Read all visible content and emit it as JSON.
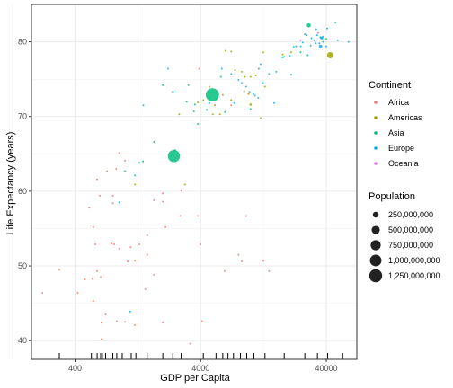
{
  "chart_data": {
    "type": "scatter",
    "title": "",
    "xlabel": "GDP per Capita",
    "ylabel": "Life Expectancy (years)",
    "x_scale": "log10",
    "xlim": [
      180,
      70000
    ],
    "ylim": [
      37.5,
      85
    ],
    "x_ticks": [
      {
        "value": 400,
        "label": "400"
      },
      {
        "value": 4000,
        "label": "4000"
      },
      {
        "value": 40000,
        "label": "40000"
      }
    ],
    "y_ticks": [
      {
        "value": 40,
        "label": "40"
      },
      {
        "value": 50,
        "label": "50"
      },
      {
        "value": 60,
        "label": "60"
      },
      {
        "value": 70,
        "label": "70"
      },
      {
        "value": 80,
        "label": "80"
      }
    ],
    "grid": true,
    "rug": "x-axis bottom",
    "color_legend": {
      "title": "Continent",
      "entries": [
        {
          "name": "Africa",
          "color": "#F8766D"
        },
        {
          "name": "Americas",
          "color": "#A3A500"
        },
        {
          "name": "Asia",
          "color": "#00BF7D"
        },
        {
          "name": "Europe",
          "color": "#00B0F6"
        },
        {
          "name": "Oceania",
          "color": "#E76BF3"
        }
      ]
    },
    "size_legend": {
      "title": "Population",
      "entries": [
        {
          "value": 250000000,
          "label": "250,000,000"
        },
        {
          "value": 500000000,
          "label": "500,000,000"
        },
        {
          "value": 750000000,
          "label": "750,000,000"
        },
        {
          "value": 1000000000,
          "label": "1,000,000,000"
        },
        {
          "value": 1250000000,
          "label": "1,250,000,000"
        }
      ]
    },
    "series": [
      {
        "name": "Africa",
        "color": "#F8766D",
        "points": [
          [
            220,
            46.4,
            8000000
          ],
          [
            300,
            49.5,
            2000000
          ],
          [
            420,
            46.4,
            3000000
          ],
          [
            480,
            48.2,
            2000000
          ],
          [
            550,
            48.3,
            3000000
          ],
          [
            600,
            49.3,
            2000000
          ],
          [
            560,
            45.3,
            2000000
          ],
          [
            650,
            42.4,
            1500000
          ],
          [
            700,
            43.5,
            2000000
          ],
          [
            640,
            48.5,
            1000000
          ],
          [
            860,
            42.6,
            2000000
          ],
          [
            1000,
            42.5,
            1000000
          ],
          [
            1200,
            42.1,
            1000000
          ],
          [
            1450,
            46.9,
            15000000
          ],
          [
            1050,
            50.6,
            1500000
          ],
          [
            1110,
            52.5,
            1000000
          ],
          [
            1300,
            52.9,
            1000000
          ],
          [
            1500,
            54.1,
            1000000
          ],
          [
            1700,
            58.8,
            1000000
          ],
          [
            2100,
            55.2,
            1000000
          ],
          [
            2750,
            56.7,
            1000000
          ],
          [
            800,
            59.4,
            2000000
          ],
          [
            1000,
            64.1,
            1000000
          ],
          [
            900,
            65.1,
            1000000
          ],
          [
            720,
            62.7,
            2000000
          ],
          [
            850,
            63.0,
            1000000
          ],
          [
            630,
            59.4,
            1000000
          ],
          [
            560,
            55.2,
            1000000
          ],
          [
            800,
            58.4,
            1000000
          ],
          [
            600,
            61.6,
            2000000
          ],
          [
            520,
            57.8,
            1500000
          ],
          [
            780,
            53.0,
            2000000
          ],
          [
            580,
            52.9,
            16000000
          ],
          [
            900,
            52.3,
            2000000
          ],
          [
            1200,
            50.7,
            2000000
          ],
          [
            1500,
            51.5,
            1000000
          ],
          [
            2000,
            59.7,
            1000000
          ],
          [
            2800,
            60.1,
            1000000
          ],
          [
            3800,
            56.7,
            1000000
          ],
          [
            3300,
            39.6,
            1000000
          ],
          [
            4000,
            52.9,
            1000000
          ],
          [
            4100,
            42.6,
            1000000
          ],
          [
            6200,
            49.3,
            1000000
          ],
          [
            8000,
            51.5,
            1000000
          ],
          [
            8500,
            50.6,
            1000000
          ],
          [
            9200,
            56.7,
            1000000
          ],
          [
            12600,
            50.7,
            1000000
          ],
          [
            14000,
            49.3,
            1000000
          ],
          [
            7000,
            71.5,
            1000000
          ],
          [
            5500,
            73.0,
            1000000
          ],
          [
            4700,
            72.5,
            1000000
          ],
          [
            3900,
            76.4,
            1000000
          ],
          [
            2000,
            58.6,
            1000000
          ],
          [
            1700,
            48.8,
            1000000
          ],
          [
            650,
            40.2,
            1000000
          ],
          [
            2000,
            42.4,
            1000000
          ],
          [
            820,
            52.9,
            2000000
          ]
        ]
      },
      {
        "name": "Americas",
        "color": "#A3A500",
        "points": [
          [
            5000,
            70.3,
            2000000
          ],
          [
            5200,
            71.5,
            3000000
          ],
          [
            6000,
            72.9,
            2000000
          ],
          [
            7000,
            72.2,
            30000000
          ],
          [
            7500,
            76.2,
            3000000
          ],
          [
            8500,
            76.0,
            10000000
          ],
          [
            9000,
            75.3,
            2000000
          ],
          [
            9600,
            73.0,
            2000000
          ],
          [
            10000,
            71.6,
            40000000
          ],
          [
            11000,
            75.5,
            2000000
          ],
          [
            12600,
            78.6,
            2000000
          ],
          [
            13000,
            74.0,
            2000000
          ],
          [
            18000,
            78.3,
            2000000
          ],
          [
            21000,
            78.6,
            1000000
          ],
          [
            36000,
            80.6,
            33000000
          ],
          [
            43000,
            78.2,
            301000000
          ],
          [
            7000,
            78.7,
            2000000
          ],
          [
            3000,
            60.9,
            8000000
          ],
          [
            1200,
            60.9,
            1500000
          ],
          [
            3800,
            71.9,
            1000000
          ],
          [
            4200,
            72.2,
            1000000
          ],
          [
            5700,
            70.3,
            1000000
          ],
          [
            6300,
            78.8,
            1000000
          ],
          [
            8900,
            73.4,
            1000000
          ],
          [
            10000,
            75.3,
            1000000
          ],
          [
            12000,
            69.8,
            1000000
          ],
          [
            2700,
            70.3,
            1000000
          ],
          [
            4700,
            74.0,
            1000000
          ]
        ]
      },
      {
        "name": "Asia",
        "color": "#00BF7D",
        "points": [
          [
            1000,
            62.7,
            2000000
          ],
          [
            1300,
            63.8,
            4000000
          ],
          [
            1390,
            64.0,
            4000000
          ],
          [
            1700,
            66.6,
            1000000
          ],
          [
            2450,
            64.7,
            1100000000
          ],
          [
            3540,
            70.7,
            2000000
          ],
          [
            3200,
            74.2,
            2000000
          ],
          [
            3600,
            71.6,
            1000000
          ],
          [
            4960,
            72.9,
            1320000000
          ],
          [
            4470,
            70.9,
            1000000
          ],
          [
            6250,
            70.6,
            1000000
          ],
          [
            10000,
            71.0,
            1000000
          ],
          [
            11600,
            76.4,
            1000000
          ],
          [
            25000,
            78.6,
            2000000
          ],
          [
            29000,
            82.2,
            127000000
          ],
          [
            23000,
            79.4,
            2000000
          ],
          [
            40000,
            80.4,
            1000000
          ],
          [
            47300,
            82.6,
            6000000
          ],
          [
            21000,
            75.6,
            1000000
          ],
          [
            2500,
            65.5,
            1000000
          ],
          [
            3100,
            72.0,
            30000000
          ],
          [
            3800,
            69.0,
            1000000
          ],
          [
            2000,
            74.2,
            1000000
          ]
        ]
      },
      {
        "name": "Europe",
        "color": "#00B0F6",
        "points": [
          [
            5900,
            76.4,
            1000000
          ],
          [
            7000,
            75.7,
            1000000
          ],
          [
            8000,
            74.9,
            1000000
          ],
          [
            9800,
            73.3,
            1000000
          ],
          [
            10500,
            73.0,
            1000000
          ],
          [
            10800,
            72.8,
            1000000
          ],
          [
            12500,
            74.5,
            1000000
          ],
          [
            14000,
            75.7,
            1000000
          ],
          [
            15400,
            71.8,
            1000000
          ],
          [
            18000,
            77.9,
            1000000
          ],
          [
            20500,
            78.1,
            1000000
          ],
          [
            22000,
            79.3,
            1000000
          ],
          [
            25000,
            79.4,
            1000000
          ],
          [
            28000,
            80.9,
            1000000
          ],
          [
            30000,
            79.5,
            1000000
          ],
          [
            32000,
            80.2,
            1000000
          ],
          [
            33000,
            79.8,
            1000000
          ],
          [
            33200,
            81.7,
            1000000
          ],
          [
            35300,
            79.8,
            1000000
          ],
          [
            36000,
            79.4,
            80000000
          ],
          [
            36800,
            80.5,
            60000000
          ],
          [
            37500,
            80.7,
            1000000
          ],
          [
            40700,
            81.8,
            1000000
          ],
          [
            49300,
            80.2,
            1000000
          ],
          [
            60000,
            80.0,
            1000000
          ],
          [
            5800,
            75.3,
            1000000
          ],
          [
            7400,
            71.8,
            1000000
          ],
          [
            8500,
            74.5,
            1000000
          ],
          [
            9200,
            74.0,
            1000000
          ],
          [
            11500,
            72.5,
            1000000
          ],
          [
            12000,
            77.0,
            1000000
          ],
          [
            16000,
            76.0,
            1000000
          ],
          [
            18500,
            78.0,
            1000000
          ],
          [
            26000,
            79.9,
            1000000
          ],
          [
            27000,
            81.0,
            1000000
          ],
          [
            30500,
            80.5,
            1000000
          ],
          [
            33800,
            80.9,
            1000000
          ],
          [
            36100,
            80.6,
            1000000
          ],
          [
            37700,
            80.0,
            1000000
          ],
          [
            40000,
            79.4,
            1000000
          ],
          [
            28500,
            78.2,
            1000000
          ],
          [
            2200,
            76.4,
            1000000
          ],
          [
            2400,
            73.3,
            1000000
          ],
          [
            4700,
            71.8,
            1000000
          ],
          [
            1200,
            62.1,
            1000000
          ],
          [
            900,
            58.5,
            1000000
          ],
          [
            1100,
            43.9,
            1000000
          ],
          [
            1400,
            71.5,
            1000000
          ]
        ]
      },
      {
        "name": "Oceania",
        "color": "#E76BF3",
        "points": [
          [
            25000,
            80.2,
            1000000
          ],
          [
            34400,
            81.2,
            2000000
          ]
        ]
      }
    ]
  }
}
